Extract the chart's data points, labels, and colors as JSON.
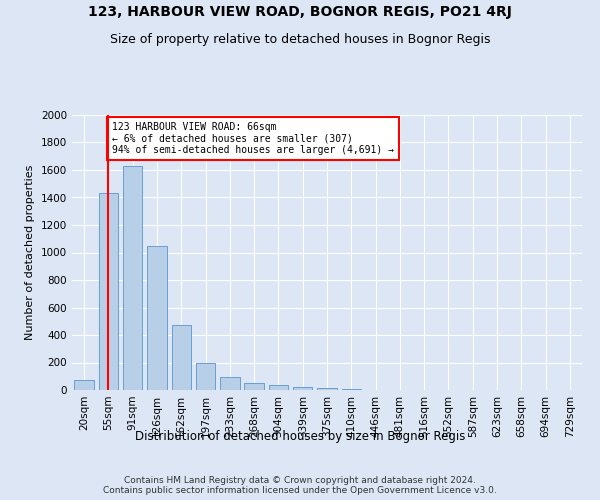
{
  "title1": "123, HARBOUR VIEW ROAD, BOGNOR REGIS, PO21 4RJ",
  "title2": "Size of property relative to detached houses in Bognor Regis",
  "xlabel": "Distribution of detached houses by size in Bognor Regis",
  "ylabel": "Number of detached properties",
  "categories": [
    "20sqm",
    "55sqm",
    "91sqm",
    "126sqm",
    "162sqm",
    "197sqm",
    "233sqm",
    "268sqm",
    "304sqm",
    "339sqm",
    "375sqm",
    "410sqm",
    "446sqm",
    "481sqm",
    "516sqm",
    "552sqm",
    "587sqm",
    "623sqm",
    "658sqm",
    "694sqm",
    "729sqm"
  ],
  "values": [
    75,
    1430,
    1630,
    1050,
    475,
    200,
    95,
    50,
    35,
    25,
    15,
    8,
    0,
    0,
    0,
    0,
    0,
    0,
    0,
    0,
    0
  ],
  "bar_color": "#b8cfe8",
  "bar_edge_color": "#6a9fd4",
  "vline_x": 1,
  "vline_color": "red",
  "annotation_text": "123 HARBOUR VIEW ROAD: 66sqm\n← 6% of detached houses are smaller (307)\n94% of semi-detached houses are larger (4,691) →",
  "annotation_box_color": "white",
  "annotation_box_edge_color": "red",
  "ylim": [
    0,
    2000
  ],
  "yticks": [
    0,
    200,
    400,
    600,
    800,
    1000,
    1200,
    1400,
    1600,
    1800,
    2000
  ],
  "footer_text": "Contains HM Land Registry data © Crown copyright and database right 2024.\nContains public sector information licensed under the Open Government Licence v3.0.",
  "background_color": "#dce6f5",
  "plot_background_color": "#dce6f5",
  "title1_fontsize": 10,
  "title2_fontsize": 9,
  "xlabel_fontsize": 8.5,
  "ylabel_fontsize": 8,
  "tick_fontsize": 7.5,
  "footer_fontsize": 6.5
}
